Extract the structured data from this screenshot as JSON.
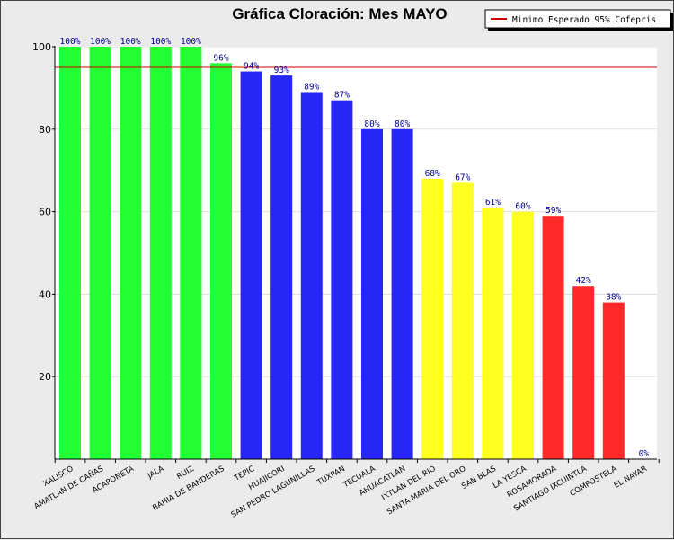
{
  "chart_data": {
    "type": "bar",
    "title": "Gráfica Cloración: Mes MAYO",
    "xlabel": "",
    "ylabel": "",
    "ylim": [
      0,
      100
    ],
    "yticks": [
      20,
      40,
      60,
      80,
      100
    ],
    "categories": [
      "XALISCO",
      "AMATLAN DE CAÑAS",
      "ACAPONETA",
      "JALA",
      "RUIZ",
      "BAHIA DE BANDERAS",
      "TEPIC",
      "HUAJICORI",
      "SAN PEDRO LAGUNILLAS",
      "TUXPAN",
      "TECUALA",
      "AHUACATLAN",
      "IXTLAN DEL RIO",
      "SANTA MARIA DEL ORO",
      "SAN BLAS",
      "LA YESCA",
      "ROSAMORADA",
      "SANTIAGO IXCUINTLA",
      "COMPOSTELA",
      "EL NAYAR"
    ],
    "values": [
      100,
      100,
      100,
      100,
      100,
      96,
      94,
      93,
      89,
      87,
      80,
      80,
      68,
      67,
      61,
      60,
      59,
      42,
      38,
      0
    ],
    "value_labels": [
      "100%",
      "100%",
      "100%",
      "100%",
      "100%",
      "96%",
      "94%",
      "93%",
      "89%",
      "87%",
      "80%",
      "80%",
      "68%",
      "67%",
      "61%",
      "60%",
      "59%",
      "42%",
      "38%",
      "0%"
    ],
    "bar_colors": [
      "#22ff33",
      "#22ff33",
      "#22ff33",
      "#22ff33",
      "#22ff33",
      "#22ff33",
      "#2727f5",
      "#2727f5",
      "#2727f5",
      "#2727f5",
      "#2727f5",
      "#2727f5",
      "#ffff22",
      "#ffff22",
      "#ffff22",
      "#ffff22",
      "#ff2a2a",
      "#ff2a2a",
      "#ff2a2a",
      "#ff2a2a"
    ],
    "reference_line": {
      "value": 95,
      "color": "#d00000"
    },
    "legend": {
      "label": "Minimo Esperado 95% Cofepris",
      "placement": "top-right"
    },
    "grid": true
  }
}
